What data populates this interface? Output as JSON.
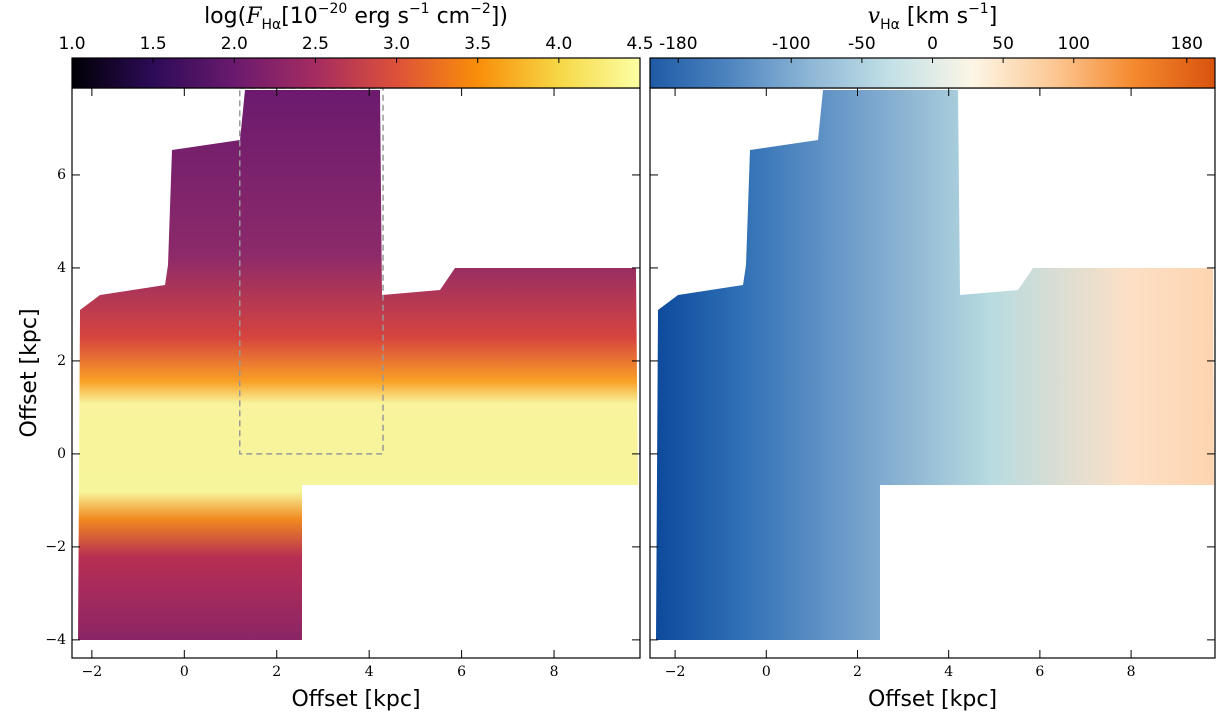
{
  "chart_data": [
    {
      "type": "heatmap",
      "xlabel": "Offset [kpc]",
      "ylabel": "Offset [kpc]",
      "xlim": [
        -2.43,
        9.86
      ],
      "ylim": [
        -4.39,
        7.87
      ],
      "xticks": [
        {
          "value": -2,
          "label": "−2"
        },
        0,
        2,
        4,
        6,
        8
      ],
      "yticks": [
        {
          "value": -4,
          "label": "−4"
        },
        {
          "value": -2,
          "label": "−2"
        },
        0,
        2,
        4,
        6
      ],
      "ytick_labels": true,
      "region": {
        "x": [
          1.2,
          4.3
        ],
        "y": [
          0,
          7.87
        ]
      },
      "colorbar": {
        "label": [
          {
            "text": "log("
          },
          {
            "text": "F",
            "pos": "it"
          },
          {
            "text": "Hα",
            "pos": "sub"
          },
          {
            "text": "[10"
          },
          {
            "text": "−20",
            "pos": "sup"
          },
          {
            "text": " erg s"
          },
          {
            "text": "−1",
            "pos": "sup"
          },
          {
            "text": " cm"
          },
          {
            "text": "−2",
            "pos": "sup"
          },
          {
            "text": "])"
          }
        ],
        "lim": [
          1.0,
          4.5
        ],
        "ticks": [
          {
            "value": 1.0,
            "label": "1.0"
          },
          1.5,
          {
            "value": 2.0,
            "label": "2.0"
          },
          2.5,
          {
            "value": 3.0,
            "label": "3.0"
          },
          3.5,
          {
            "value": 4.0,
            "label": "4.0"
          },
          4.5
        ],
        "colormap": [
          "#000004",
          "#2c0b57",
          "#6b1a6e",
          "#a52c60",
          "#dd513a",
          "#f98e09",
          "#f6d746",
          "#fcffa4"
        ]
      }
    },
    {
      "type": "heatmap",
      "xlabel": "Offset [kpc]",
      "xlim": [
        -2.55,
        9.84
      ],
      "ylim": [
        -4.39,
        7.87
      ],
      "xticks": [
        {
          "value": -2,
          "label": "−2"
        },
        0,
        2,
        4,
        6,
        8
      ],
      "yticks": [
        -4,
        -2,
        0,
        2,
        4,
        6
      ],
      "ytick_labels": false,
      "colorbar": {
        "label": [
          {
            "text": "v",
            "pos": "it"
          },
          {
            "text": "Hα",
            "pos": "sub"
          },
          {
            "text": " [km s"
          },
          {
            "text": "−1",
            "pos": "sup"
          },
          {
            "text": "]"
          }
        ],
        "lim": [
          -200,
          200
        ],
        "ticks": [
          -180,
          -100,
          -50,
          0,
          50,
          100,
          180
        ],
        "colormap": [
          "#1f5aa6",
          "#4f86c0",
          "#8fb7d6",
          "#c3e1e6",
          "#fdf6e6",
          "#fcc894",
          "#f4892e",
          "#d8530e"
        ]
      }
    }
  ]
}
